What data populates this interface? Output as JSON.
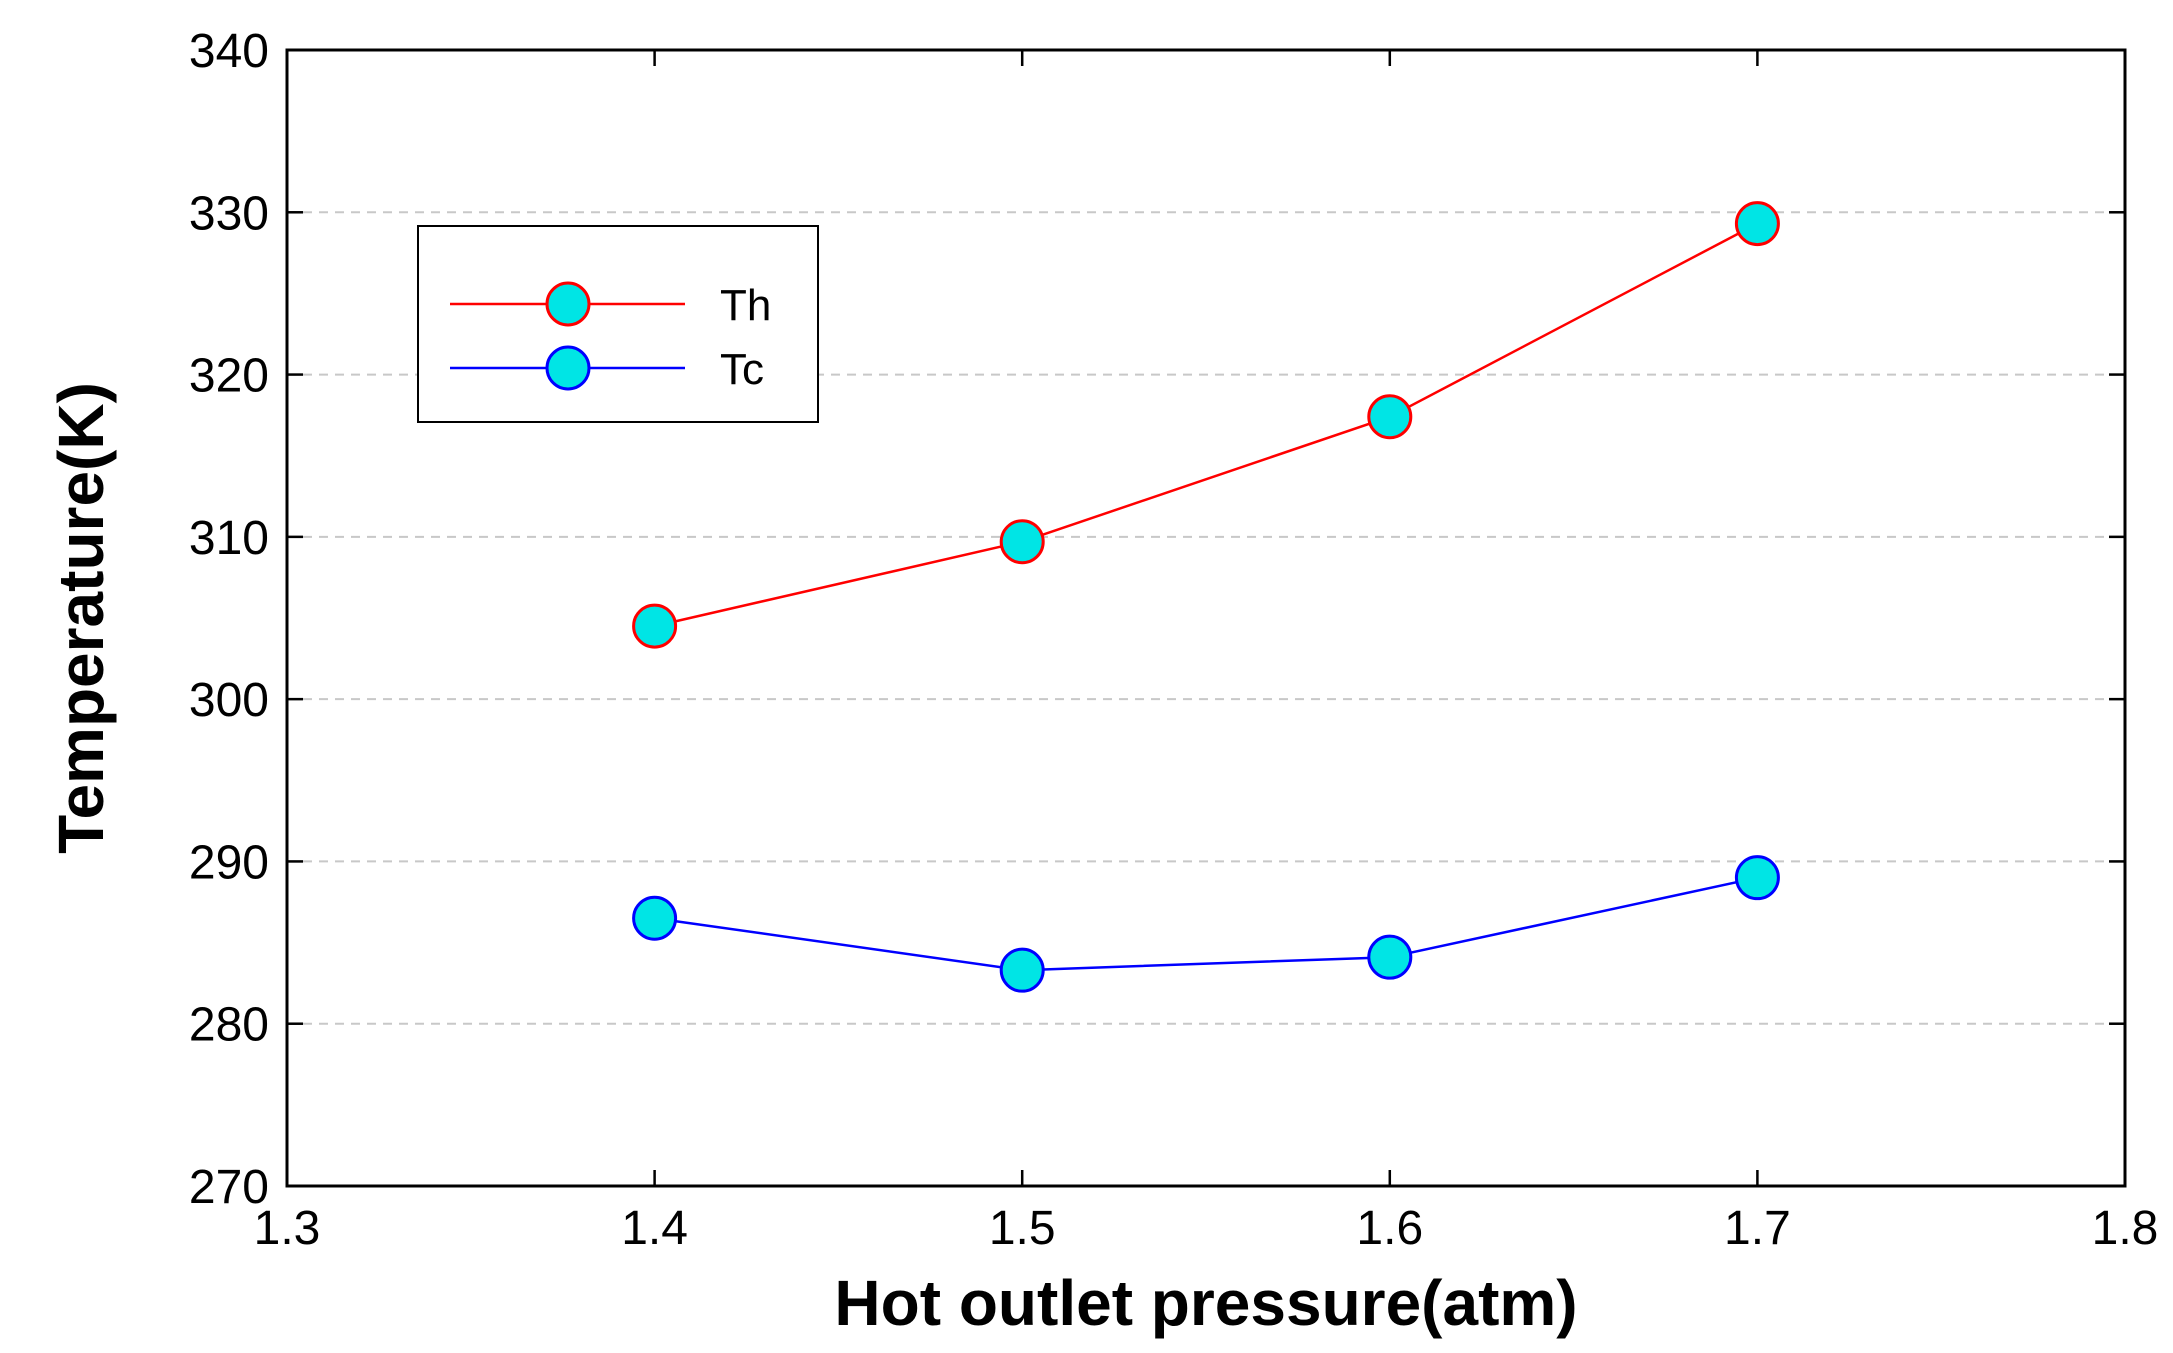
{
  "chart_data": {
    "type": "line",
    "title": "",
    "xlabel": "Hot outlet pressure(atm)",
    "ylabel": "Temperature(K)",
    "xlim": [
      1.3,
      1.8
    ],
    "ylim": [
      270,
      340
    ],
    "xticks": [
      1.3,
      1.4,
      1.5,
      1.6,
      1.7,
      1.8
    ],
    "yticks": [
      270,
      280,
      290,
      300,
      310,
      320,
      330,
      340
    ],
    "xtick_labels": [
      "1.3",
      "1.4",
      "1.5",
      "1.6",
      "1.7",
      "1.8"
    ],
    "ytick_labels": [
      "270",
      "280",
      "290",
      "300",
      "310",
      "320",
      "330",
      "340"
    ],
    "grid": "horizontal dashed",
    "legend_position": "top-left",
    "marker_fill": "#00e5e5",
    "series": [
      {
        "name": "Th",
        "color": "#ff0000",
        "x": [
          1.4,
          1.5,
          1.6,
          1.7
        ],
        "values": [
          304.5,
          309.7,
          317.4,
          329.3
        ]
      },
      {
        "name": "Tc",
        "color": "#0000ff",
        "x": [
          1.4,
          1.5,
          1.6,
          1.7
        ],
        "values": [
          286.5,
          283.3,
          284.1,
          289.0
        ]
      }
    ]
  }
}
